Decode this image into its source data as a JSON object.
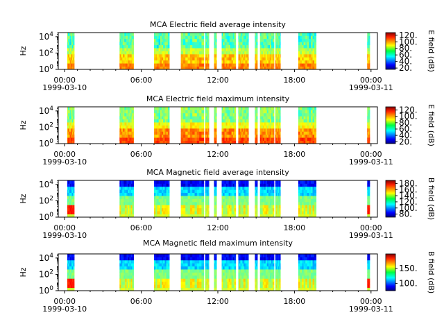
{
  "chart_data": [
    {
      "type": "heatmap",
      "title": "MCA  Electric field average intensity",
      "ylabel": "Hz",
      "y_scale": "log",
      "ylim": [
        1,
        31623
      ],
      "y_ticks": [
        {
          "exp": "0",
          "val": 1
        },
        {
          "exp": "2",
          "val": 100
        },
        {
          "exp": "4",
          "val": 10000
        }
      ],
      "x_ticks": [
        "00:00",
        "06:00",
        "12:00",
        "18:00",
        "00:00"
      ],
      "x_dates": [
        "1999-03-10",
        "1999-03-11"
      ],
      "xlim_hours": [
        -0.5,
        24.5
      ],
      "colorbar": {
        "label": "E field (dB)",
        "range": [
          16,
          128
        ],
        "ticks": [
          20,
          40,
          60,
          80,
          100,
          120
        ],
        "tick_labels": [
          "20.",
          "40.",
          "60.",
          "80.",
          "100.",
          "120."
        ]
      },
      "style": "e-avg",
      "segments": [
        [
          0.2,
          0.75
        ],
        [
          4.3,
          4.6
        ],
        [
          4.6,
          5.4
        ],
        [
          7.0,
          8.2
        ],
        [
          9.1,
          10.9
        ],
        [
          11.0,
          11.3
        ],
        [
          11.7,
          11.9
        ],
        [
          12.3,
          13.4
        ],
        [
          13.6,
          14.4
        ],
        [
          14.9,
          15.1
        ],
        [
          15.3,
          16.4
        ],
        [
          16.5,
          16.9
        ],
        [
          18.3,
          19.7
        ],
        [
          23.7,
          23.9
        ]
      ]
    },
    {
      "type": "heatmap",
      "title": "MCA  Electric field maximum intensity",
      "ylabel": "Hz",
      "y_scale": "log",
      "ylim": [
        1,
        31623
      ],
      "y_ticks": [
        {
          "exp": "0",
          "val": 1
        },
        {
          "exp": "2",
          "val": 100
        },
        {
          "exp": "4",
          "val": 10000
        }
      ],
      "x_ticks": [
        "00:00",
        "06:00",
        "12:00",
        "18:00",
        "00:00"
      ],
      "x_dates": [
        "1999-03-10",
        "1999-03-11"
      ],
      "xlim_hours": [
        -0.5,
        24.5
      ],
      "colorbar": {
        "label": "E field (dB)",
        "range": [
          14,
          130
        ],
        "ticks": [
          20,
          40,
          60,
          80,
          100,
          120
        ],
        "tick_labels": [
          "20.",
          "40.",
          "60.",
          "80.",
          "100.",
          "120."
        ]
      },
      "style": "e-max",
      "segments": [
        [
          0.2,
          0.75
        ],
        [
          4.3,
          4.6
        ],
        [
          4.6,
          5.4
        ],
        [
          7.0,
          8.2
        ],
        [
          9.1,
          10.9
        ],
        [
          11.0,
          11.3
        ],
        [
          11.7,
          11.9
        ],
        [
          12.3,
          13.4
        ],
        [
          13.6,
          14.4
        ],
        [
          14.9,
          15.1
        ],
        [
          15.3,
          16.4
        ],
        [
          16.5,
          16.9
        ],
        [
          18.3,
          19.7
        ],
        [
          23.7,
          23.9
        ]
      ]
    },
    {
      "type": "heatmap",
      "title": "MCA  Magnetic field average intensity",
      "ylabel": "Hz",
      "y_scale": "log",
      "ylim": [
        1,
        31623
      ],
      "y_ticks": [
        {
          "exp": "0",
          "val": 1
        },
        {
          "exp": "2",
          "val": 100
        },
        {
          "exp": "4",
          "val": 10000
        }
      ],
      "x_ticks": [
        "00:00",
        "06:00",
        "12:00",
        "18:00",
        "00:00"
      ],
      "x_dates": [
        "1999-03-10",
        "1999-03-11"
      ],
      "xlim_hours": [
        -0.5,
        24.5
      ],
      "colorbar": {
        "label": "B field (dB)",
        "range": [
          70,
          190
        ],
        "ticks": [
          80,
          100,
          120,
          140,
          160,
          180
        ],
        "tick_labels": [
          "80.",
          "100.",
          "120.",
          "140.",
          "160.",
          "180."
        ]
      },
      "style": "b",
      "segments": [
        [
          0.2,
          0.75
        ],
        [
          4.3,
          5.4
        ],
        [
          7.0,
          8.2
        ],
        [
          9.1,
          10.9
        ],
        [
          11.0,
          11.3
        ],
        [
          11.7,
          11.9
        ],
        [
          12.3,
          13.4
        ],
        [
          13.6,
          14.4
        ],
        [
          14.9,
          15.1
        ],
        [
          15.3,
          16.4
        ],
        [
          16.5,
          16.9
        ],
        [
          18.3,
          19.7
        ],
        [
          23.7,
          23.9
        ]
      ]
    },
    {
      "type": "heatmap",
      "title": "MCA  Magnetic field maximum intensity",
      "ylabel": "Hz",
      "y_scale": "log",
      "ylim": [
        1,
        31623
      ],
      "y_ticks": [
        {
          "exp": "0",
          "val": 1
        },
        {
          "exp": "2",
          "val": 100
        },
        {
          "exp": "4",
          "val": 10000
        }
      ],
      "x_ticks": [
        "00:00",
        "06:00",
        "12:00",
        "18:00",
        "00:00"
      ],
      "x_dates": [
        "1999-03-10",
        "1999-03-11"
      ],
      "xlim_hours": [
        -0.5,
        24.5
      ],
      "colorbar": {
        "label": "B field (dB)",
        "range": [
          75,
          200
        ],
        "ticks": [
          100,
          150
        ],
        "tick_labels": [
          "100.",
          "150."
        ]
      },
      "style": "b",
      "segments": [
        [
          0.2,
          0.75
        ],
        [
          4.3,
          5.4
        ],
        [
          7.0,
          8.2
        ],
        [
          9.1,
          10.9
        ],
        [
          11.0,
          11.3
        ],
        [
          11.7,
          11.9
        ],
        [
          12.3,
          13.4
        ],
        [
          13.6,
          14.4
        ],
        [
          14.9,
          15.1
        ],
        [
          15.3,
          16.4
        ],
        [
          16.5,
          16.9
        ],
        [
          18.3,
          19.7
        ],
        [
          23.7,
          23.9
        ]
      ]
    }
  ]
}
